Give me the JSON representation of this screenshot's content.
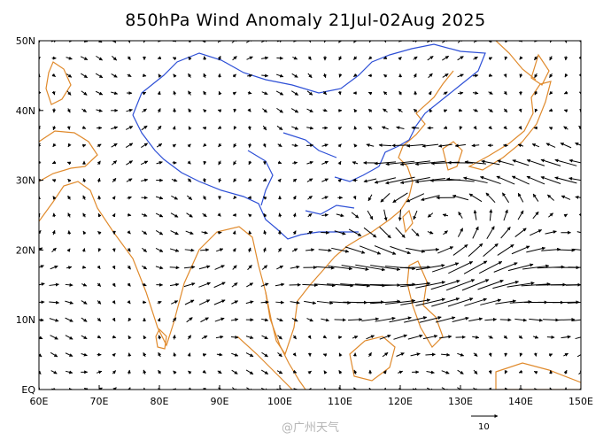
{
  "title": "850hPa Wind Anomaly 21Jul-02Aug 2025",
  "axes": {
    "lat_labels": [
      "50N",
      "40N",
      "30N",
      "20N",
      "10N",
      "EQ"
    ],
    "lon_labels": [
      "60E",
      "70E",
      "80E",
      "90E",
      "100E",
      "110E",
      "120E",
      "130E",
      "140E",
      "150E"
    ],
    "lat_range": [
      0,
      50
    ],
    "lon_range": [
      60,
      150
    ]
  },
  "reference_vector": {
    "value": "10"
  },
  "watermark": "@广州天气",
  "colors": {
    "coastline": "#e08a2c",
    "boundary": "#2d4fd6",
    "vector": "#000000"
  },
  "chart_data": {
    "type": "vector-field",
    "title": "850hPa Wind Anomaly 21Jul-02Aug 2025",
    "xlim": [
      60,
      150
    ],
    "ylim": [
      0,
      50
    ],
    "reference_vector_speed": 10,
    "features": [
      {
        "name": "anomalous westerly belt",
        "lat_range": [
          8,
          22
        ],
        "lon_range": [
          100,
          145
        ]
      },
      {
        "name": "anomalous easterly belt",
        "lat_range": [
          28,
          36
        ],
        "lon_range": [
          112,
          140
        ]
      },
      {
        "name": "anomalous cyclonic circulation",
        "center": [
          126,
          24
        ]
      }
    ]
  }
}
